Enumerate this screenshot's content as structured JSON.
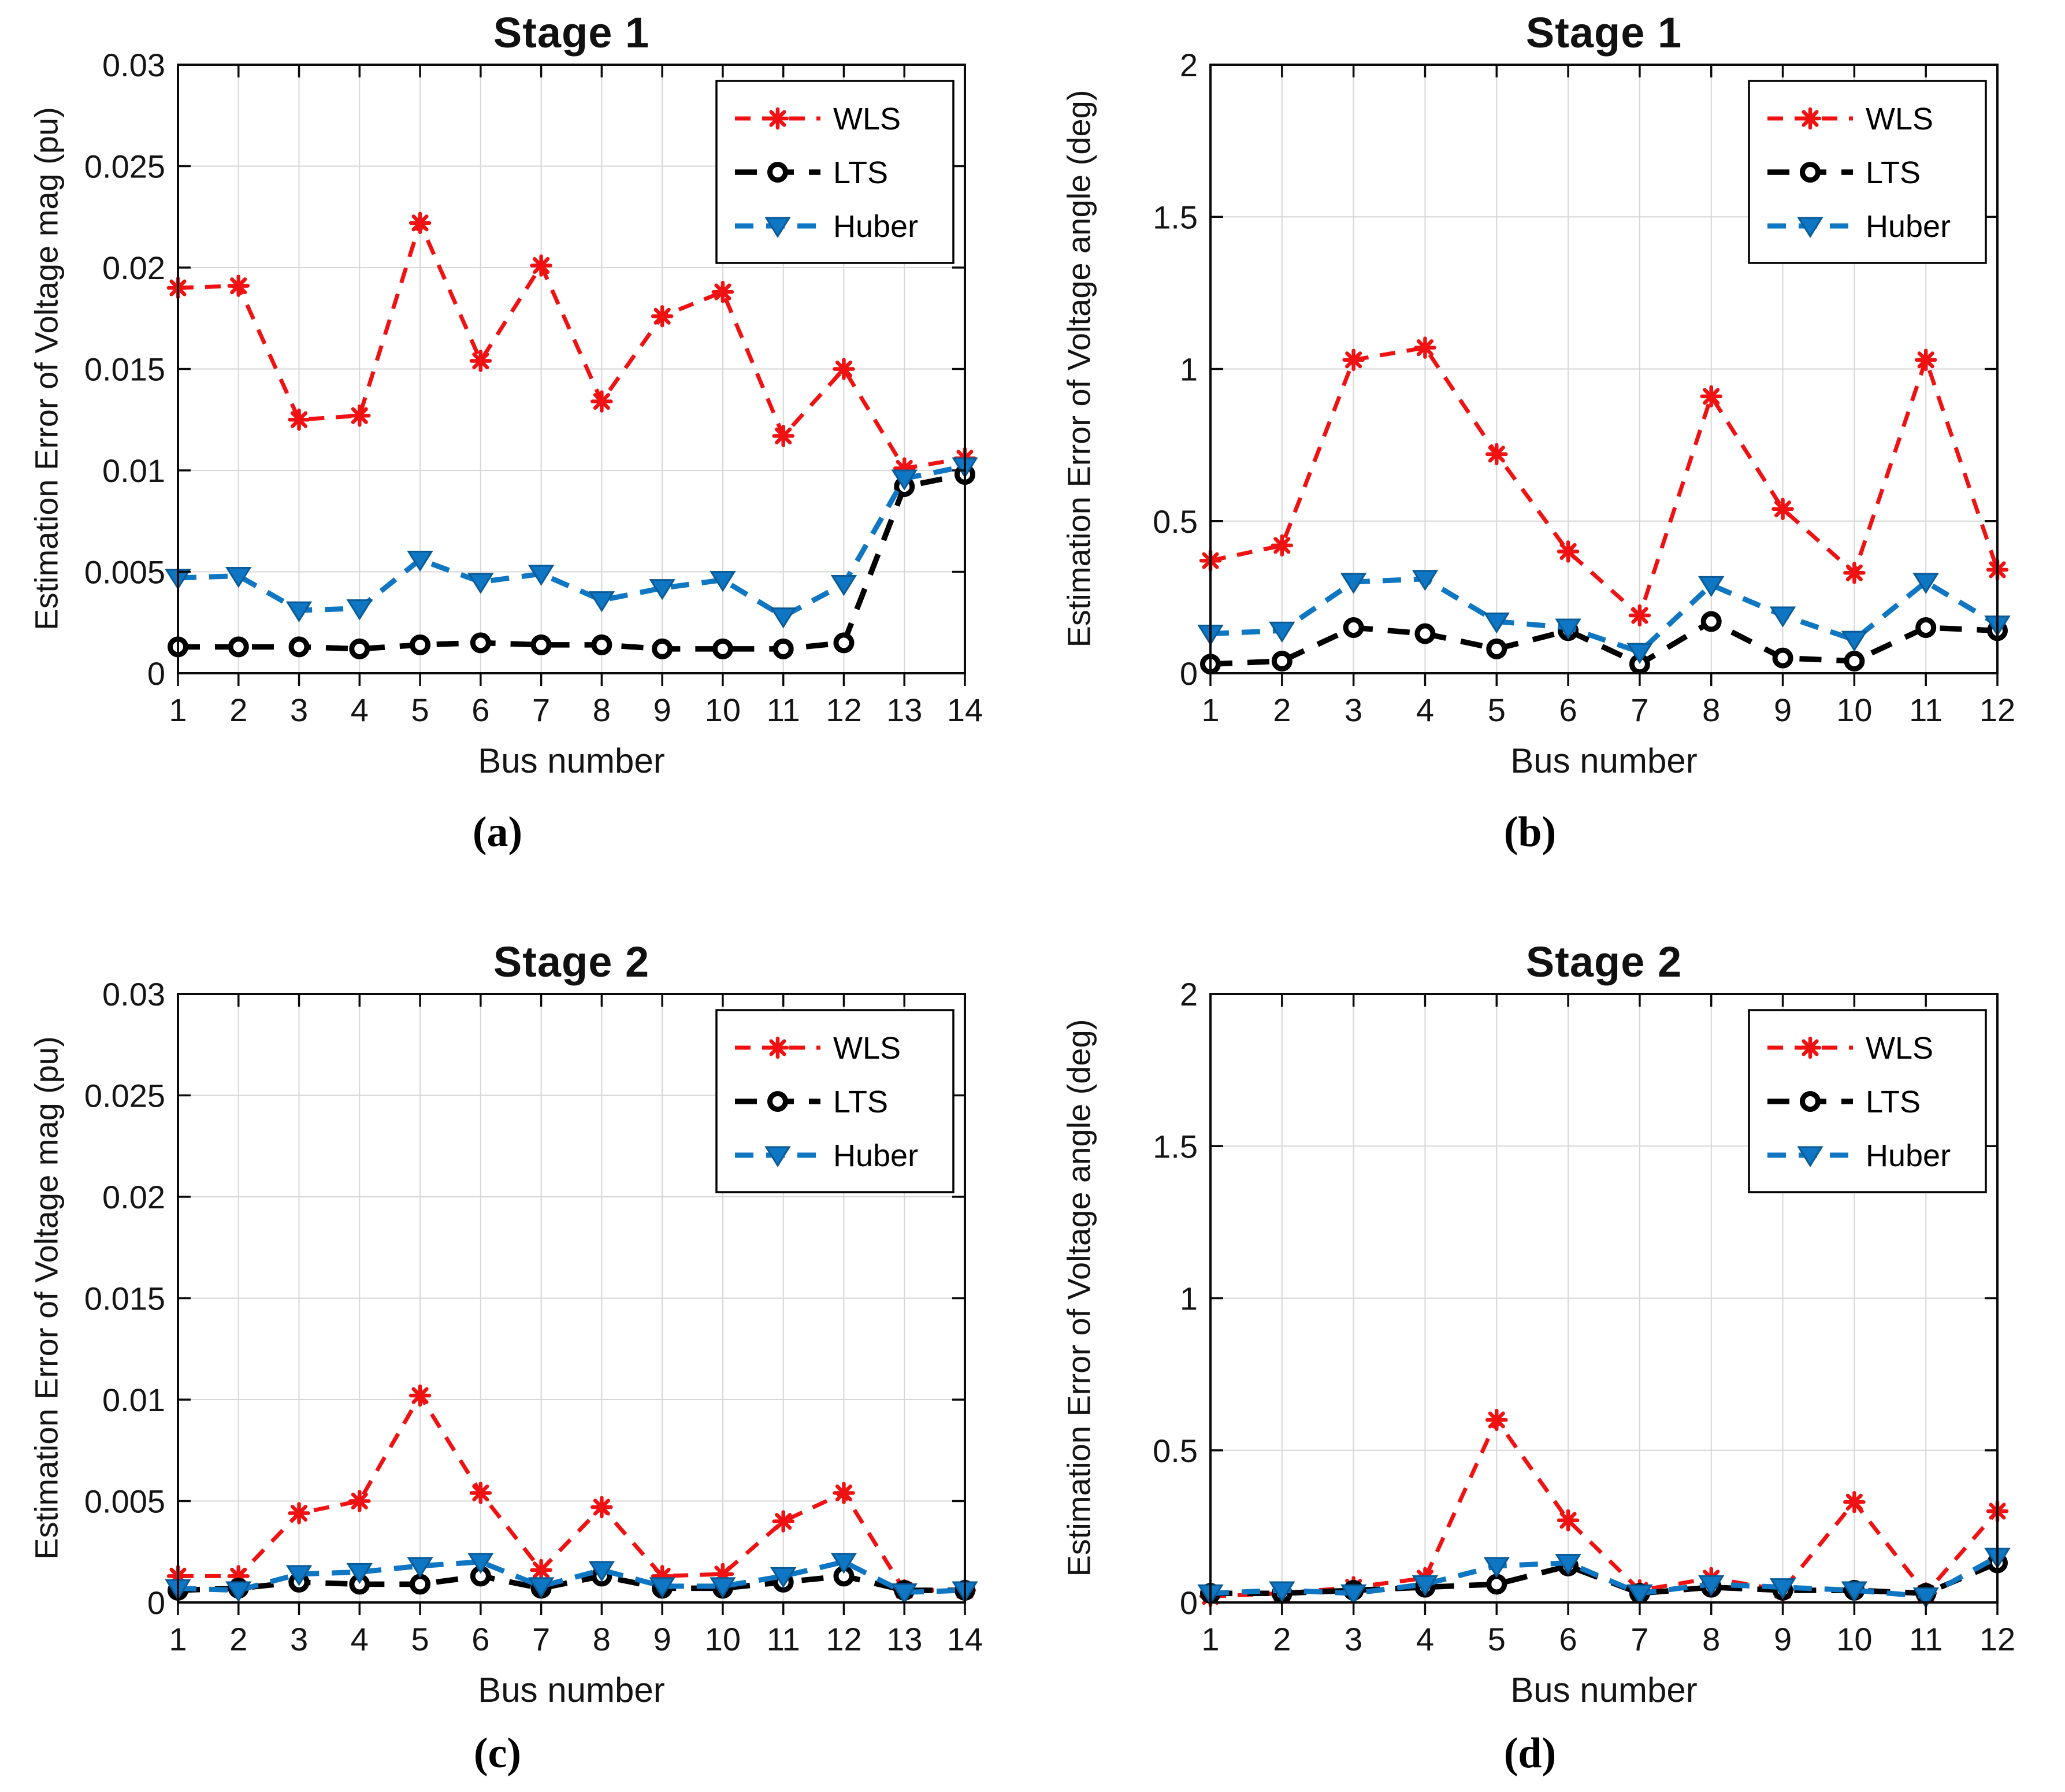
{
  "colors": {
    "wls": "#f01212",
    "lts": "#000000",
    "lts_fill": "#ffffff",
    "huber": "#0e76c2",
    "huber_edge": "#0a5a96",
    "grid": "#d6d6d6",
    "axis": "#0a0a0a",
    "text": "#141414",
    "legend_bg": "#ffffff",
    "legend_border": "#000000",
    "background": "#ffffff"
  },
  "chart_data": [
    {
      "type": "line",
      "title": "Stage 1",
      "xlabel": "Bus number",
      "ylabel": "Estimation Error of Voltage mag (pu)",
      "caption": "(a)",
      "xlim": [
        1,
        14
      ],
      "ylim": [
        0,
        0.03
      ],
      "x_ticks": [
        1,
        2,
        3,
        4,
        5,
        6,
        7,
        8,
        9,
        10,
        11,
        12,
        13,
        14
      ],
      "ytick_values": [
        0,
        0.005,
        0.01,
        0.015,
        0.02,
        0.025,
        0.03
      ],
      "ytick_labels": [
        "0",
        "0.005",
        "0.01",
        "0.015",
        "0.02",
        "0.025",
        "0.03"
      ],
      "grid": "on",
      "legend_position": "top-right",
      "series": [
        {
          "name": "WLS",
          "color": "wls",
          "marker": "asterisk",
          "values": [
            0.019,
            0.0191,
            0.0125,
            0.0127,
            0.0222,
            0.0154,
            0.0201,
            0.0134,
            0.0176,
            0.0188,
            0.0117,
            0.015,
            0.0101,
            0.0106
          ]
        },
        {
          "name": "LTS",
          "color": "lts",
          "marker": "circle",
          "values": [
            0.0013,
            0.0013,
            0.0013,
            0.0012,
            0.0014,
            0.0015,
            0.0014,
            0.0014,
            0.0012,
            0.0012,
            0.0012,
            0.0015,
            0.0092,
            0.0098
          ]
        },
        {
          "name": "Huber",
          "color": "huber",
          "marker": "triangle-down",
          "values": [
            0.0047,
            0.0048,
            0.0031,
            0.0032,
            0.0056,
            0.0045,
            0.0049,
            0.0036,
            0.0042,
            0.0046,
            0.0028,
            0.0044,
            0.0096,
            0.0102
          ]
        }
      ]
    },
    {
      "type": "line",
      "title": "Stage 1",
      "xlabel": "Bus number",
      "ylabel": "Estimation Error of Voltage angle (deg)",
      "caption": "(b)",
      "xlim": [
        1,
        12
      ],
      "ylim": [
        0,
        2
      ],
      "x_ticks": [
        1,
        2,
        3,
        4,
        5,
        6,
        7,
        8,
        9,
        10,
        11,
        12
      ],
      "ytick_values": [
        0,
        0.5,
        1,
        1.5,
        2
      ],
      "ytick_labels": [
        "0",
        "0.5",
        "1",
        "1.5",
        "2"
      ],
      "grid": "on",
      "legend_position": "top-right",
      "series": [
        {
          "name": "WLS",
          "color": "wls",
          "marker": "asterisk",
          "values": [
            0.37,
            0.42,
            1.03,
            1.07,
            0.72,
            0.4,
            0.19,
            0.91,
            0.54,
            0.33,
            1.03,
            0.34
          ]
        },
        {
          "name": "LTS",
          "color": "lts",
          "marker": "circle",
          "values": [
            0.03,
            0.04,
            0.15,
            0.13,
            0.08,
            0.14,
            0.03,
            0.17,
            0.05,
            0.04,
            0.15,
            0.14
          ]
        },
        {
          "name": "Huber",
          "color": "huber",
          "marker": "triangle-down",
          "values": [
            0.13,
            0.14,
            0.3,
            0.31,
            0.17,
            0.15,
            0.07,
            0.29,
            0.19,
            0.11,
            0.3,
            0.16
          ]
        }
      ]
    },
    {
      "type": "line",
      "title": "Stage 2",
      "xlabel": "Bus number",
      "ylabel": "Estimation Error of Voltage mag (pu)",
      "caption": "(c)",
      "xlim": [
        1,
        14
      ],
      "ylim": [
        0,
        0.03
      ],
      "x_ticks": [
        1,
        2,
        3,
        4,
        5,
        6,
        7,
        8,
        9,
        10,
        11,
        12,
        13,
        14
      ],
      "ytick_values": [
        0,
        0.005,
        0.01,
        0.015,
        0.02,
        0.025,
        0.03
      ],
      "ytick_labels": [
        "0",
        "0.005",
        "0.01",
        "0.015",
        "0.02",
        "0.025",
        "0.03"
      ],
      "grid": "on",
      "legend_position": "top-right",
      "series": [
        {
          "name": "WLS",
          "color": "wls",
          "marker": "asterisk",
          "values": [
            0.0013,
            0.0013,
            0.0044,
            0.005,
            0.0102,
            0.0054,
            0.0016,
            0.0047,
            0.0013,
            0.0014,
            0.004,
            0.0054,
            0.0006,
            0.0006
          ]
        },
        {
          "name": "LTS",
          "color": "lts",
          "marker": "circle",
          "values": [
            0.0006,
            0.0007,
            0.001,
            0.0009,
            0.0009,
            0.0013,
            0.0007,
            0.0013,
            0.0007,
            0.0007,
            0.001,
            0.0013,
            0.0006,
            0.0006
          ]
        },
        {
          "name": "Huber",
          "color": "huber",
          "marker": "triangle-down",
          "values": [
            0.0007,
            0.0006,
            0.0014,
            0.0015,
            0.0018,
            0.002,
            0.0008,
            0.0016,
            0.0008,
            0.0008,
            0.0013,
            0.002,
            0.0005,
            0.0006
          ]
        }
      ]
    },
    {
      "type": "line",
      "title": "Stage 2",
      "xlabel": "Bus number",
      "ylabel": "Estimation Error of Voltage angle (deg)",
      "caption": "(d)",
      "xlim": [
        1,
        12
      ],
      "ylim": [
        0,
        2
      ],
      "x_ticks": [
        1,
        2,
        3,
        4,
        5,
        6,
        7,
        8,
        9,
        10,
        11,
        12
      ],
      "ytick_values": [
        0,
        0.5,
        1,
        1.5,
        2
      ],
      "ytick_labels": [
        "0",
        "0.5",
        "1",
        "1.5",
        "2"
      ],
      "grid": "on",
      "legend_position": "top-right",
      "series": [
        {
          "name": "WLS",
          "color": "wls",
          "marker": "asterisk",
          "values": [
            0.02,
            0.03,
            0.05,
            0.08,
            0.6,
            0.27,
            0.04,
            0.08,
            0.04,
            0.33,
            0.03,
            0.3
          ]
        },
        {
          "name": "LTS",
          "color": "lts",
          "marker": "circle",
          "values": [
            0.03,
            0.03,
            0.04,
            0.05,
            0.06,
            0.12,
            0.03,
            0.05,
            0.04,
            0.04,
            0.03,
            0.13
          ]
        },
        {
          "name": "Huber",
          "color": "huber",
          "marker": "triangle-down",
          "values": [
            0.03,
            0.04,
            0.03,
            0.06,
            0.12,
            0.13,
            0.03,
            0.06,
            0.05,
            0.04,
            0.02,
            0.15
          ]
        }
      ]
    }
  ]
}
